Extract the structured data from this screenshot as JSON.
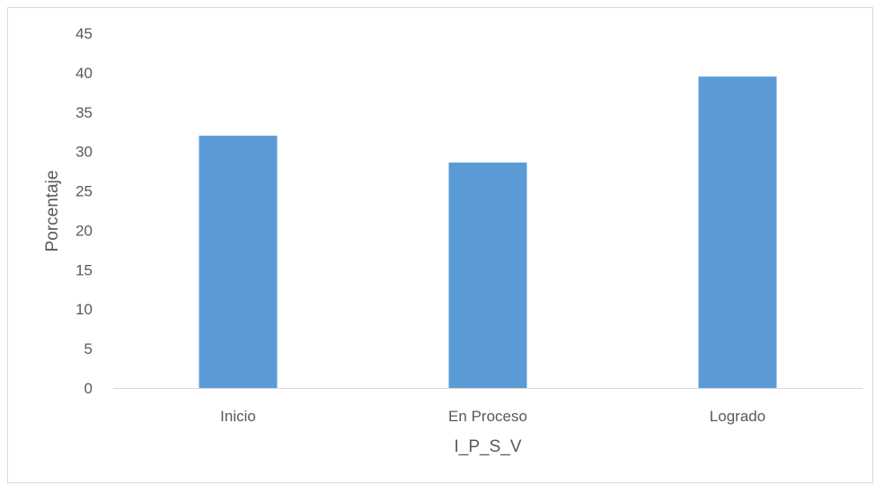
{
  "chart_data": {
    "type": "bar",
    "categories": [
      "Inicio",
      "En Proceso",
      "Logrado"
    ],
    "values": [
      32.0,
      28.6,
      39.5
    ],
    "title": "",
    "xlabel": "I_P_S_V",
    "ylabel": "Porcentaje",
    "ylim": [
      0,
      45
    ],
    "yticks": [
      "0",
      "5",
      "10",
      "15",
      "20",
      "25",
      "30",
      "35",
      "40",
      "45"
    ],
    "grid": false,
    "legend": "none",
    "bar_color": "#5b9bd5",
    "axis_color": "#d9d9d9"
  }
}
